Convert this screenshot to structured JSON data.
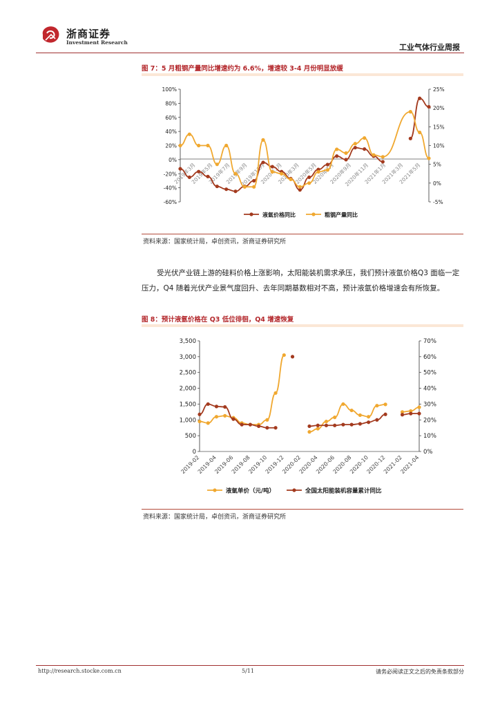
{
  "header": {
    "logo_cn": "浙商证券",
    "logo_en": "Investment Research",
    "report_type": "工业气体行业周报"
  },
  "figure7": {
    "title": "图 7：5 月粗钢产量同比增速约为 6.6%，增速较 3-4 月份明显放缓",
    "source": "资料来源：国家统计局，卓创资讯，浙商证券研究所"
  },
  "paragraph": "受光伏产业链上游的硅料价格上涨影响，太阳能装机需求承压，我们预计液氩价格Q3 面临一定压力，Q4 随着光伏产业景气度回升、去年同期基数相对不高，预计液氩价格增速会有所恢复。",
  "figure8": {
    "title": "图 8：预计液氩价格在 Q3 低位徘徊，Q4 增速恢复",
    "source": "资料来源：国家统计局，卓创资讯，浙商证券研究所"
  },
  "footer": {
    "url": "http://research.stocke.com.cn",
    "page": "5/11",
    "disclaimer": "请务必阅读正文之后的免责条款部分"
  },
  "colors": {
    "brand_red": "#b3262a",
    "series_dark": "#a33a1e",
    "series_orange": "#f0a830"
  },
  "chart_data": [
    {
      "type": "line",
      "title": "图 7：5 月粗钢产量同比增速约为 6.6%，增速较 3-4 月份明显放缓",
      "x_tick_labels": [
        "2019年3月",
        "2019年5月",
        "2019年7月",
        "2019年9月",
        "2019年11月",
        "2020年1月",
        "2020年3月",
        "2020年5月",
        "2020年7月",
        "2020年9月",
        "2020年11月",
        "2021年1月",
        "2021年3月",
        "2021年5月"
      ],
      "y_left": {
        "ticks": [
          "100%",
          "80%",
          "60%",
          "40%",
          "20%",
          "0%",
          "-20%",
          "-40%",
          "-60%"
        ],
        "ylim": [
          -60,
          100
        ]
      },
      "y_right": {
        "ticks": [
          "25%",
          "20%",
          "15%",
          "10%",
          "5%",
          "0%",
          "-5%"
        ],
        "ylim": [
          -5,
          25
        ]
      },
      "legend_position": "bottom",
      "grid": false,
      "series": [
        {
          "name": "液氩价格同比",
          "axis": "left",
          "x": [
            0,
            1,
            2,
            3,
            4,
            5,
            6,
            7,
            8,
            9,
            10,
            11,
            12,
            13,
            14,
            15,
            16,
            17,
            18,
            19,
            20,
            21,
            22,
            23,
            24,
            25,
            26,
            27
          ],
          "y": [
            -13,
            -25,
            -17,
            -24,
            -38,
            -42,
            -45,
            -38,
            -30,
            -4,
            -10,
            -17,
            -27,
            -43,
            -25,
            -14,
            -7,
            5,
            0,
            17,
            15,
            5,
            -3,
            null,
            null,
            30,
            87,
            75
          ]
        },
        {
          "name": "粗钢产量同比",
          "axis": "right",
          "x": [
            0,
            1,
            2,
            3,
            4,
            5,
            6,
            7,
            8,
            9,
            10,
            11,
            12,
            13,
            14,
            15,
            16,
            17,
            18,
            19,
            20,
            21,
            22,
            25,
            26,
            27
          ],
          "y": [
            10,
            13,
            10,
            10,
            5,
            10,
            2.5,
            -1,
            -1,
            11.5,
            3,
            2.5,
            1,
            -1,
            0,
            3,
            3.5,
            9,
            8,
            10.5,
            12,
            7.5,
            7,
            19,
            13.5,
            6.6
          ]
        }
      ]
    },
    {
      "type": "line",
      "title": "图 8：预计液氩价格在 Q3 低位徘徊，Q4 增速恢复",
      "x_tick_labels": [
        "2019-02",
        "2019-04",
        "2019-06",
        "2019-08",
        "2019-10",
        "2019-12",
        "2020-02",
        "2020-04",
        "2020-06",
        "2020-08",
        "2020-10",
        "2020-12",
        "2021-02",
        "2021-04"
      ],
      "y_left": {
        "ticks": [
          "3,500",
          "3,000",
          "2,500",
          "2,000",
          "1,500",
          "1,000",
          "500",
          "0"
        ],
        "ylim": [
          0,
          3500
        ]
      },
      "y_right": {
        "ticks": [
          "70%",
          "60%",
          "50%",
          "40%",
          "30%",
          "20%",
          "10%",
          "0%"
        ],
        "ylim": [
          0,
          70
        ]
      },
      "legend_position": "bottom",
      "grid": false,
      "series": [
        {
          "name": "液氩单价（元/吨）",
          "axis": "left",
          "x": [
            0,
            1,
            2,
            3,
            4,
            5,
            6,
            7,
            8,
            9,
            10,
            11,
            12,
            13,
            14,
            15,
            16,
            17,
            18,
            19,
            20,
            21,
            22,
            23,
            24,
            25,
            26
          ],
          "y": [
            950,
            900,
            1100,
            1130,
            1070,
            900,
            850,
            850,
            1000,
            1850,
            3050,
            null,
            null,
            620,
            720,
            950,
            1080,
            1500,
            1300,
            1150,
            1100,
            1450,
            1490,
            null,
            1250,
            1280,
            1400
          ]
        },
        {
          "name": "全国太阳能装机容量累计同比",
          "axis": "right",
          "x": [
            0,
            1,
            2,
            3,
            4,
            5,
            6,
            7,
            8,
            9,
            10,
            11,
            12,
            13,
            14,
            15,
            16,
            17,
            18,
            19,
            20,
            21,
            22,
            23,
            24,
            25,
            26
          ],
          "y": [
            23.5,
            30,
            28.5,
            28.2,
            20.5,
            17,
            17,
            16,
            15,
            15,
            null,
            60,
            null,
            16,
            16.5,
            16.5,
            16.5,
            17,
            17,
            17.5,
            18.5,
            20,
            23.5,
            null,
            23.3,
            24,
            24
          ]
        }
      ]
    }
  ]
}
